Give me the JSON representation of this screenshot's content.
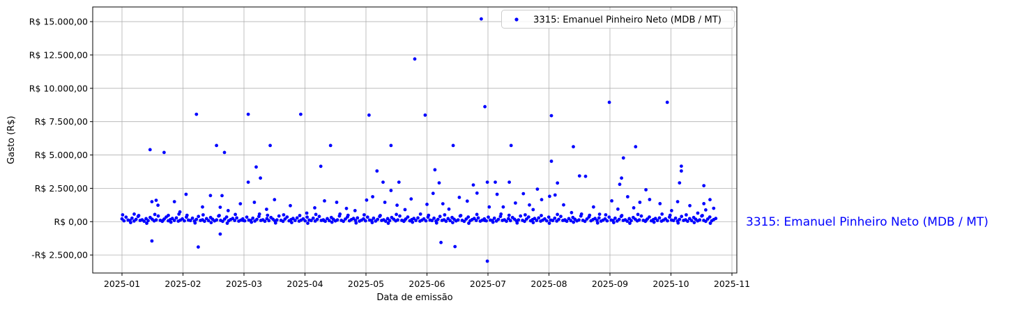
{
  "colors": {
    "series": "#0000ff",
    "grid": "#b0b0b0",
    "spine": "#000000",
    "legend_border": "#cccccc",
    "legend_fill": "#ffffff",
    "annotation": "#0000ff"
  },
  "annotation": {
    "text": "3315: Emanuel Pinheiro Neto (MDB / MT)"
  },
  "chart_data": {
    "type": "scatter",
    "title": "",
    "xlabel": "Data de emissão",
    "ylabel": "Gasto (R$)",
    "grid": true,
    "legend": {
      "position": "upper right",
      "label": "3315: Emanuel Pinheiro Neto (MDB / MT)"
    },
    "x_unit": "months since 2025-01-01",
    "xlim": [
      -0.48,
      10.08
    ],
    "ylim": [
      -3850,
      16100
    ],
    "x_ticks": [
      0,
      1,
      2,
      3,
      4,
      5,
      6,
      7,
      8,
      9,
      10
    ],
    "x_tick_labels": [
      "2025-01",
      "2025-02",
      "2025-03",
      "2025-04",
      "2025-05",
      "2025-06",
      "2025-07",
      "2025-08",
      "2025-09",
      "2025-10",
      "2025-11"
    ],
    "y_ticks": [
      15000,
      12500,
      10000,
      7500,
      5000,
      2500,
      0,
      -2500
    ],
    "y_tick_labels": [
      "R$ 15.000,00",
      "R$ 12.500,00",
      "R$ 10.000,00",
      "R$ 7.500,00",
      "R$ 5.000,00",
      "R$ 2.500,00",
      "R$ 0,00",
      "-R$ 2.500,00"
    ],
    "series": [
      {
        "name": "3315: Emanuel Pinheiro Neto (MDB / MT)",
        "color": "#0000ff",
        "points": [
          [
            5.89,
            15200
          ],
          [
            4.8,
            12200
          ],
          [
            8.94,
            8950
          ],
          [
            7.99,
            8950
          ],
          [
            5.95,
            8620
          ],
          [
            1.22,
            8050
          ],
          [
            2.07,
            8050
          ],
          [
            2.93,
            8050
          ],
          [
            4.05,
            7990
          ],
          [
            4.97,
            7990
          ],
          [
            7.04,
            7950
          ],
          [
            0.46,
            5400
          ],
          [
            0.69,
            5190
          ],
          [
            1.55,
            5710
          ],
          [
            1.68,
            5190
          ],
          [
            2.43,
            5710
          ],
          [
            3.42,
            5710
          ],
          [
            4.41,
            5710
          ],
          [
            5.43,
            5710
          ],
          [
            6.38,
            5710
          ],
          [
            7.4,
            5620
          ],
          [
            8.42,
            5620
          ],
          [
            2.2,
            4100
          ],
          [
            3.26,
            4150
          ],
          [
            7.04,
            4530
          ],
          [
            8.22,
            4780
          ],
          [
            9.17,
            4160
          ],
          [
            2.27,
            3270
          ],
          [
            4.18,
            3800
          ],
          [
            5.13,
            3890
          ],
          [
            7.5,
            3430
          ],
          [
            8.19,
            3270
          ],
          [
            9.17,
            3800
          ],
          [
            7.6,
            3400
          ],
          [
            2.07,
            2960
          ],
          [
            4.28,
            2960
          ],
          [
            4.54,
            2960
          ],
          [
            5.2,
            2910
          ],
          [
            5.76,
            2750
          ],
          [
            5.99,
            2960
          ],
          [
            6.12,
            2960
          ],
          [
            6.35,
            2960
          ],
          [
            6.81,
            2440
          ],
          [
            7.14,
            2900
          ],
          [
            8.16,
            2800
          ],
          [
            8.59,
            2390
          ],
          [
            9.14,
            2910
          ],
          [
            9.54,
            2700
          ],
          [
            4.41,
            2340
          ],
          [
            1.05,
            2050
          ],
          [
            1.45,
            1960
          ],
          [
            1.64,
            1950
          ],
          [
            5.1,
            2120
          ],
          [
            5.53,
            1820
          ],
          [
            6.15,
            2050
          ],
          [
            6.58,
            2100
          ],
          [
            7.01,
            1900
          ],
          [
            7.1,
            2000
          ],
          [
            8.29,
            1870
          ],
          [
            4.11,
            1870
          ],
          [
            0.2,
            570
          ],
          [
            0.49,
            1500
          ],
          [
            0.56,
            1600
          ],
          [
            0.59,
            1230
          ],
          [
            0.76,
            470
          ],
          [
            0.86,
            1500
          ],
          [
            0.95,
            730
          ],
          [
            1.32,
            1100
          ],
          [
            1.61,
            1080
          ],
          [
            1.74,
            830
          ],
          [
            1.94,
            1340
          ],
          [
            2.17,
            1450
          ],
          [
            2.37,
            930
          ],
          [
            2.5,
            1650
          ],
          [
            2.76,
            1200
          ],
          [
            3.03,
            640
          ],
          [
            3.16,
            1040
          ],
          [
            3.32,
            1560
          ],
          [
            3.52,
            1450
          ],
          [
            3.68,
            990
          ],
          [
            3.82,
            830
          ],
          [
            4.01,
            1620
          ],
          [
            4.31,
            1450
          ],
          [
            4.51,
            1230
          ],
          [
            4.64,
            900
          ],
          [
            4.74,
            1700
          ],
          [
            5.0,
            1300
          ],
          [
            5.26,
            1340
          ],
          [
            5.36,
            940
          ],
          [
            5.66,
            1540
          ],
          [
            5.82,
            2140
          ],
          [
            6.02,
            1100
          ],
          [
            6.25,
            1100
          ],
          [
            6.45,
            1400
          ],
          [
            6.68,
            1250
          ],
          [
            6.74,
            900
          ],
          [
            6.88,
            1650
          ],
          [
            7.24,
            1260
          ],
          [
            7.37,
            680
          ],
          [
            7.73,
            1100
          ],
          [
            7.83,
            560
          ],
          [
            8.03,
            1560
          ],
          [
            8.13,
            940
          ],
          [
            8.39,
            1040
          ],
          [
            8.49,
            1450
          ],
          [
            8.65,
            1660
          ],
          [
            8.82,
            1350
          ],
          [
            9.01,
            830
          ],
          [
            9.11,
            1500
          ],
          [
            9.31,
            1200
          ],
          [
            9.44,
            640
          ],
          [
            9.54,
            1350
          ],
          [
            9.57,
            880
          ],
          [
            9.64,
            1650
          ],
          [
            9.7,
            1000
          ],
          [
            0.49,
            -1450
          ],
          [
            1.25,
            -1900
          ],
          [
            1.61,
            -930
          ],
          [
            5.23,
            -1560
          ],
          [
            5.46,
            -1870
          ],
          [
            5.99,
            -2960
          ]
        ],
        "baseline_cluster": {
          "comment": "dense band of small daily expenses hugging the R$ 0 line",
          "m_min": 0,
          "m_max": 9.72,
          "step": 0.033,
          "values_cycle": [
            210,
            60,
            340,
            120,
            85,
            260,
            45,
            170,
            390,
            95,
            140,
            30,
            230,
            75,
            310,
            180,
            55,
            130,
            420,
            100,
            25,
            200,
            350,
            65,
            155,
            240,
            90,
            280,
            40,
            115
          ],
          "extra_every": 4,
          "extra_values_cycle": [
            510,
            -70,
            460,
            -120,
            540,
            90,
            -45,
            570,
            480,
            -100
          ]
        }
      }
    ]
  }
}
